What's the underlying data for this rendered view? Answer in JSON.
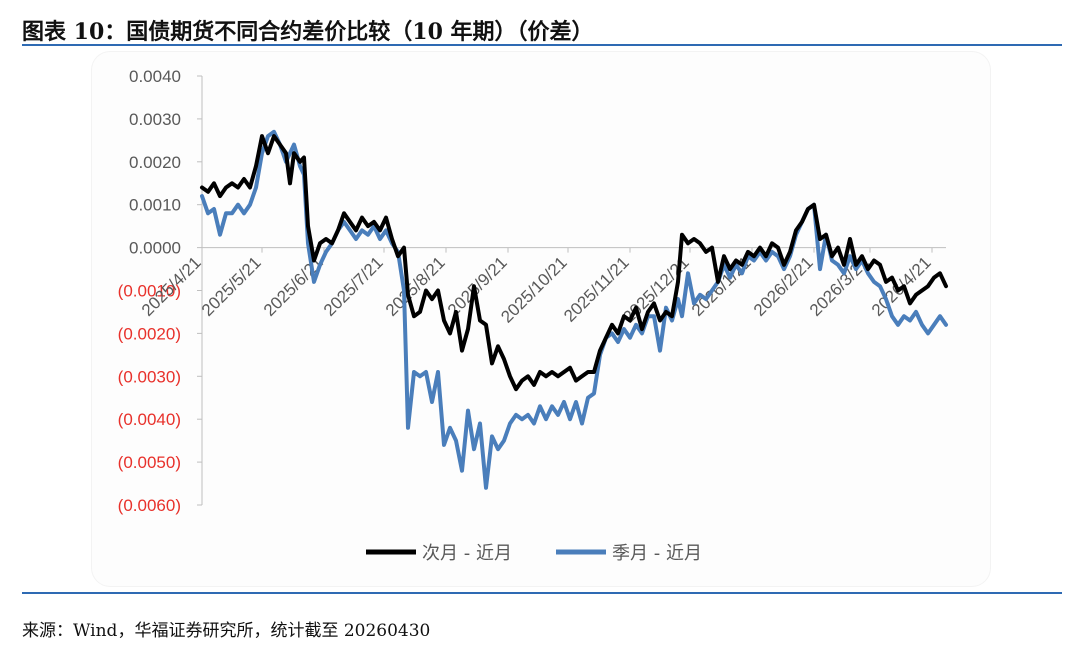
{
  "header": {
    "title": "图表 10：国债期货不同合约差价比较（10 年期）（价差）"
  },
  "footer": {
    "source": "来源：Wind，华福证券研究所，统计截至 20260430"
  },
  "colors": {
    "series_1": "#000000",
    "series_2": "#4a7ebb",
    "negative_label": "#e8312b",
    "positive_label": "#595959",
    "rule": "#2e6ab3"
  },
  "chart_data": {
    "type": "line",
    "title": "",
    "xlabel": "",
    "ylabel": "",
    "ylim": [
      -0.006,
      0.004
    ],
    "grid": false,
    "legend_position": "bottom",
    "y_ticks": [
      {
        "value": 0.004,
        "label": "0.0040"
      },
      {
        "value": 0.003,
        "label": "0.0030"
      },
      {
        "value": 0.002,
        "label": "0.0020"
      },
      {
        "value": 0.001,
        "label": "0.0010"
      },
      {
        "value": 0.0,
        "label": "0.0000"
      },
      {
        "value": -0.001,
        "label": "(0.0010)"
      },
      {
        "value": -0.002,
        "label": "(0.0020)"
      },
      {
        "value": -0.003,
        "label": "(0.0030)"
      },
      {
        "value": -0.004,
        "label": "(0.0040)"
      },
      {
        "value": -0.005,
        "label": "(0.0050)"
      },
      {
        "value": -0.006,
        "label": "(0.0060)"
      }
    ],
    "x_ticks": [
      "2025/4/21",
      "2025/5/21",
      "2025/6/21",
      "2025/7/21",
      "2025/8/21",
      "2025/9/21",
      "2025/10/21",
      "2025/11/21",
      "2025/12/21",
      "2026/1/21",
      "2026/2/21",
      "2026/3/21",
      "2026/4/21"
    ],
    "series": [
      {
        "name": "次月 - 近月",
        "points": [
          [
            "2025-04-21",
            0.0014
          ],
          [
            "2025-04-24",
            0.0013
          ],
          [
            "2025-04-27",
            0.0015
          ],
          [
            "2025-04-30",
            0.0012
          ],
          [
            "2025-05-03",
            0.0014
          ],
          [
            "2025-05-06",
            0.0015
          ],
          [
            "2025-05-09",
            0.0014
          ],
          [
            "2025-05-12",
            0.0016
          ],
          [
            "2025-05-15",
            0.0014
          ],
          [
            "2025-05-18",
            0.0019
          ],
          [
            "2025-05-21",
            0.0026
          ],
          [
            "2025-05-24",
            0.0022
          ],
          [
            "2025-05-27",
            0.0026
          ],
          [
            "2025-05-30",
            0.0024
          ],
          [
            "2025-06-02",
            0.0022
          ],
          [
            "2025-06-04",
            0.0015
          ],
          [
            "2025-06-06",
            0.0022
          ],
          [
            "2025-06-09",
            0.002
          ],
          [
            "2025-06-11",
            0.0021
          ],
          [
            "2025-06-13",
            0.0005
          ],
          [
            "2025-06-16",
            -0.0003
          ],
          [
            "2025-06-19",
            0.0001
          ],
          [
            "2025-06-22",
            0.0002
          ],
          [
            "2025-06-25",
            0.0001
          ],
          [
            "2025-06-28",
            0.0004
          ],
          [
            "2025-07-01",
            0.0008
          ],
          [
            "2025-07-04",
            0.0006
          ],
          [
            "2025-07-07",
            0.0004
          ],
          [
            "2025-07-10",
            0.0007
          ],
          [
            "2025-07-13",
            0.0005
          ],
          [
            "2025-07-16",
            0.0006
          ],
          [
            "2025-07-19",
            0.0004
          ],
          [
            "2025-07-22",
            0.0007
          ],
          [
            "2025-07-25",
            0.0002
          ],
          [
            "2025-07-28",
            -0.0002
          ],
          [
            "2025-07-31",
            0.0
          ],
          [
            "2025-08-02",
            -0.0011
          ],
          [
            "2025-08-05",
            -0.0016
          ],
          [
            "2025-08-08",
            -0.0015
          ],
          [
            "2025-08-11",
            -0.001
          ],
          [
            "2025-08-14",
            -0.0012
          ],
          [
            "2025-08-17",
            -0.001
          ],
          [
            "2025-08-20",
            -0.0017
          ],
          [
            "2025-08-23",
            -0.002
          ],
          [
            "2025-08-26",
            -0.0015
          ],
          [
            "2025-08-29",
            -0.0024
          ],
          [
            "2025-09-01",
            -0.0019
          ],
          [
            "2025-09-04",
            -0.0009
          ],
          [
            "2025-09-07",
            -0.0017
          ],
          [
            "2025-09-10",
            -0.0018
          ],
          [
            "2025-09-13",
            -0.0027
          ],
          [
            "2025-09-16",
            -0.0023
          ],
          [
            "2025-09-19",
            -0.0026
          ],
          [
            "2025-09-22",
            -0.003
          ],
          [
            "2025-09-25",
            -0.0033
          ],
          [
            "2025-09-28",
            -0.0031
          ],
          [
            "2025-10-01",
            -0.003
          ],
          [
            "2025-10-04",
            -0.0032
          ],
          [
            "2025-10-07",
            -0.0029
          ],
          [
            "2025-10-10",
            -0.003
          ],
          [
            "2025-10-13",
            -0.0029
          ],
          [
            "2025-10-16",
            -0.003
          ],
          [
            "2025-10-19",
            -0.0029
          ],
          [
            "2025-10-22",
            -0.0028
          ],
          [
            "2025-10-25",
            -0.0031
          ],
          [
            "2025-10-28",
            -0.003
          ],
          [
            "2025-10-31",
            -0.0029
          ],
          [
            "2025-11-03",
            -0.0029
          ],
          [
            "2025-11-06",
            -0.0024
          ],
          [
            "2025-11-09",
            -0.0021
          ],
          [
            "2025-11-12",
            -0.0018
          ],
          [
            "2025-11-15",
            -0.002
          ],
          [
            "2025-11-18",
            -0.0016
          ],
          [
            "2025-11-21",
            -0.0017
          ],
          [
            "2025-11-24",
            -0.0014
          ],
          [
            "2025-11-27",
            -0.0019
          ],
          [
            "2025-11-30",
            -0.0015
          ],
          [
            "2025-12-03",
            -0.0013
          ],
          [
            "2025-12-06",
            -0.0017
          ],
          [
            "2025-12-09",
            -0.0015
          ],
          [
            "2025-12-12",
            -0.0016
          ],
          [
            "2025-12-15",
            -0.0008
          ],
          [
            "2025-12-17",
            0.0003
          ],
          [
            "2025-12-20",
            0.0001
          ],
          [
            "2025-12-23",
            0.0002
          ],
          [
            "2025-12-26",
            0.0001
          ],
          [
            "2025-12-29",
            -0.0001
          ],
          [
            "2026-01-01",
            0.0
          ],
          [
            "2026-01-04",
            -0.0008
          ],
          [
            "2026-01-07",
            -0.0002
          ],
          [
            "2026-01-10",
            -0.0005
          ],
          [
            "2026-01-13",
            -0.0003
          ],
          [
            "2026-01-16",
            -0.0004
          ],
          [
            "2026-01-19",
            -0.0001
          ],
          [
            "2026-01-22",
            -0.0002
          ],
          [
            "2026-01-25",
            0.0
          ],
          [
            "2026-01-28",
            -0.0002
          ],
          [
            "2026-01-31",
            0.0001
          ],
          [
            "2026-02-03",
            0.0
          ],
          [
            "2026-02-06",
            -0.0004
          ],
          [
            "2026-02-09",
            -0.0001
          ],
          [
            "2026-02-12",
            0.0004
          ],
          [
            "2026-02-15",
            0.0006
          ],
          [
            "2026-02-18",
            0.0009
          ],
          [
            "2026-02-21",
            0.001
          ],
          [
            "2026-02-24",
            0.0002
          ],
          [
            "2026-02-27",
            0.0003
          ],
          [
            "2026-03-02",
            -0.0002
          ],
          [
            "2026-03-05",
            0.0
          ],
          [
            "2026-03-08",
            -0.0004
          ],
          [
            "2026-03-11",
            0.0002
          ],
          [
            "2026-03-14",
            -0.0004
          ],
          [
            "2026-03-17",
            -0.0002
          ],
          [
            "2026-03-20",
            -0.0005
          ],
          [
            "2026-03-23",
            -0.0003
          ],
          [
            "2026-03-26",
            -0.0004
          ],
          [
            "2026-03-29",
            -0.0008
          ],
          [
            "2026-04-01",
            -0.0007
          ],
          [
            "2026-04-04",
            -0.001
          ],
          [
            "2026-04-07",
            -0.0009
          ],
          [
            "2026-04-10",
            -0.0013
          ],
          [
            "2026-04-13",
            -0.0011
          ],
          [
            "2026-04-16",
            -0.001
          ],
          [
            "2026-04-19",
            -0.0009
          ],
          [
            "2026-04-22",
            -0.0007
          ],
          [
            "2026-04-25",
            -0.0006
          ],
          [
            "2026-04-28",
            -0.0009
          ]
        ]
      },
      {
        "name": "季月 - 近月",
        "points": [
          [
            "2025-04-21",
            0.0012
          ],
          [
            "2025-04-24",
            0.0008
          ],
          [
            "2025-04-27",
            0.0009
          ],
          [
            "2025-04-30",
            0.0003
          ],
          [
            "2025-05-03",
            0.0008
          ],
          [
            "2025-05-06",
            0.0008
          ],
          [
            "2025-05-09",
            0.001
          ],
          [
            "2025-05-12",
            0.0008
          ],
          [
            "2025-05-15",
            0.001
          ],
          [
            "2025-05-18",
            0.0014
          ],
          [
            "2025-05-21",
            0.0022
          ],
          [
            "2025-05-24",
            0.0026
          ],
          [
            "2025-05-27",
            0.0027
          ],
          [
            "2025-05-30",
            0.0024
          ],
          [
            "2025-06-02",
            0.002
          ],
          [
            "2025-06-04",
            0.0022
          ],
          [
            "2025-06-06",
            0.0024
          ],
          [
            "2025-06-09",
            0.0019
          ],
          [
            "2025-06-11",
            0.0017
          ],
          [
            "2025-06-13",
            0.0001
          ],
          [
            "2025-06-16",
            -0.0008
          ],
          [
            "2025-06-19",
            -0.0004
          ],
          [
            "2025-06-22",
            -0.0001
          ],
          [
            "2025-06-25",
            0.0001
          ],
          [
            "2025-06-28",
            0.0004
          ],
          [
            "2025-07-01",
            0.0006
          ],
          [
            "2025-07-04",
            0.0004
          ],
          [
            "2025-07-07",
            0.0002
          ],
          [
            "2025-07-10",
            0.0004
          ],
          [
            "2025-07-13",
            0.0003
          ],
          [
            "2025-07-16",
            0.0005
          ],
          [
            "2025-07-19",
            0.0002
          ],
          [
            "2025-07-22",
            0.0004
          ],
          [
            "2025-07-25",
            0.0001
          ],
          [
            "2025-07-28",
            -0.0001
          ],
          [
            "2025-07-31",
            -0.001
          ],
          [
            "2025-08-02",
            -0.0042
          ],
          [
            "2025-08-05",
            -0.0029
          ],
          [
            "2025-08-08",
            -0.003
          ],
          [
            "2025-08-11",
            -0.0029
          ],
          [
            "2025-08-14",
            -0.0036
          ],
          [
            "2025-08-17",
            -0.0029
          ],
          [
            "2025-08-20",
            -0.0046
          ],
          [
            "2025-08-23",
            -0.0042
          ],
          [
            "2025-08-26",
            -0.0045
          ],
          [
            "2025-08-29",
            -0.0052
          ],
          [
            "2025-09-01",
            -0.0038
          ],
          [
            "2025-09-04",
            -0.0047
          ],
          [
            "2025-09-07",
            -0.0041
          ],
          [
            "2025-09-10",
            -0.0056
          ],
          [
            "2025-09-13",
            -0.0044
          ],
          [
            "2025-09-16",
            -0.0047
          ],
          [
            "2025-09-19",
            -0.0045
          ],
          [
            "2025-09-22",
            -0.0041
          ],
          [
            "2025-09-25",
            -0.0039
          ],
          [
            "2025-09-28",
            -0.004
          ],
          [
            "2025-10-01",
            -0.0039
          ],
          [
            "2025-10-04",
            -0.0041
          ],
          [
            "2025-10-07",
            -0.0037
          ],
          [
            "2025-10-10",
            -0.004
          ],
          [
            "2025-10-13",
            -0.0037
          ],
          [
            "2025-10-16",
            -0.0039
          ],
          [
            "2025-10-19",
            -0.0036
          ],
          [
            "2025-10-22",
            -0.004
          ],
          [
            "2025-10-25",
            -0.0036
          ],
          [
            "2025-10-28",
            -0.0041
          ],
          [
            "2025-10-31",
            -0.0035
          ],
          [
            "2025-11-03",
            -0.0034
          ],
          [
            "2025-11-06",
            -0.0025
          ],
          [
            "2025-11-09",
            -0.0021
          ],
          [
            "2025-11-12",
            -0.002
          ],
          [
            "2025-11-15",
            -0.0022
          ],
          [
            "2025-11-18",
            -0.0019
          ],
          [
            "2025-11-21",
            -0.0021
          ],
          [
            "2025-11-24",
            -0.0018
          ],
          [
            "2025-11-27",
            -0.002
          ],
          [
            "2025-11-30",
            -0.0016
          ],
          [
            "2025-12-03",
            -0.0016
          ],
          [
            "2025-12-06",
            -0.0024
          ],
          [
            "2025-12-09",
            -0.0014
          ],
          [
            "2025-12-12",
            -0.0017
          ],
          [
            "2025-12-15",
            -0.0012
          ],
          [
            "2025-12-17",
            -0.0016
          ],
          [
            "2025-12-20",
            -0.0006
          ],
          [
            "2025-12-23",
            -0.0013
          ],
          [
            "2025-12-26",
            -0.0011
          ],
          [
            "2025-12-29",
            -0.0012
          ],
          [
            "2026-01-01",
            -0.001
          ],
          [
            "2026-01-04",
            -0.0008
          ],
          [
            "2026-01-07",
            -0.0004
          ],
          [
            "2026-01-10",
            -0.0007
          ],
          [
            "2026-01-13",
            -0.0004
          ],
          [
            "2026-01-16",
            -0.0006
          ],
          [
            "2026-01-19",
            -0.0002
          ],
          [
            "2026-01-22",
            -0.0003
          ],
          [
            "2026-01-25",
            -0.0001
          ],
          [
            "2026-01-28",
            -0.0003
          ],
          [
            "2026-01-31",
            -0.0001
          ],
          [
            "2026-02-03",
            -0.0002
          ],
          [
            "2026-02-06",
            -0.0005
          ],
          [
            "2026-02-09",
            -0.0002
          ],
          [
            "2026-02-12",
            0.0003
          ],
          [
            "2026-02-15",
            0.0006
          ],
          [
            "2026-02-18",
            0.0009
          ],
          [
            "2026-02-21",
            0.001
          ],
          [
            "2026-02-24",
            -0.0005
          ],
          [
            "2026-02-27",
            0.0003
          ],
          [
            "2026-03-02",
            -0.0003
          ],
          [
            "2026-03-05",
            -0.0004
          ],
          [
            "2026-03-08",
            -0.0006
          ],
          [
            "2026-03-11",
            -0.0002
          ],
          [
            "2026-03-14",
            -0.0005
          ],
          [
            "2026-03-17",
            -0.0003
          ],
          [
            "2026-03-20",
            -0.0006
          ],
          [
            "2026-03-23",
            -0.0008
          ],
          [
            "2026-03-26",
            -0.0009
          ],
          [
            "2026-03-29",
            -0.0012
          ],
          [
            "2026-04-01",
            -0.0016
          ],
          [
            "2026-04-04",
            -0.0018
          ],
          [
            "2026-04-07",
            -0.0016
          ],
          [
            "2026-04-10",
            -0.0017
          ],
          [
            "2026-04-13",
            -0.0015
          ],
          [
            "2026-04-16",
            -0.0018
          ],
          [
            "2026-04-19",
            -0.002
          ],
          [
            "2026-04-22",
            -0.0018
          ],
          [
            "2026-04-25",
            -0.0016
          ],
          [
            "2026-04-28",
            -0.0018
          ]
        ]
      }
    ]
  }
}
